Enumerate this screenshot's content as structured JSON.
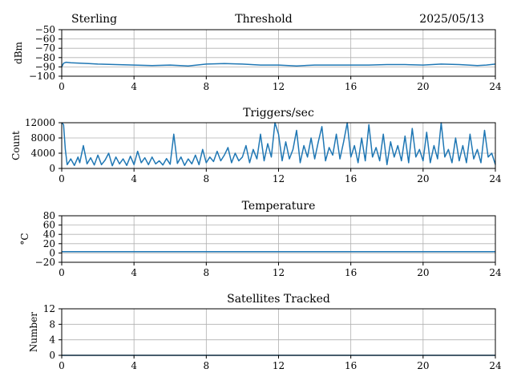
{
  "header": {
    "left": "Sterling",
    "center": "Threshold",
    "right": "2025/05/13"
  },
  "colors": {
    "series": "#1f77b4",
    "grid": "#b0b0b0"
  },
  "chart_data": [
    {
      "type": "line",
      "title": "",
      "ylabel": "dBm",
      "xlabel": "",
      "xlim": [
        0,
        24
      ],
      "ylim": [
        -100,
        -50
      ],
      "xticks": [
        0,
        4,
        8,
        12,
        16,
        20,
        24
      ],
      "yticks": [
        -100,
        -90,
        -80,
        -70,
        -60,
        -50
      ],
      "ytick_labels": [
        "−100",
        "−90",
        "−80",
        "−70",
        "−60",
        "−50"
      ],
      "grid": true,
      "x": [
        0,
        0.1,
        0.25,
        0.5,
        1,
        1.5,
        2,
        3,
        4,
        5,
        6,
        7,
        8,
        9,
        10,
        11,
        12,
        13,
        14,
        15,
        16,
        17,
        18,
        19,
        20,
        21,
        22,
        23,
        23.5,
        24
      ],
      "y": [
        -90,
        -86,
        -85,
        -85.5,
        -86,
        -86.5,
        -87,
        -87.5,
        -88,
        -88.5,
        -88,
        -89,
        -87,
        -86.5,
        -87,
        -88,
        -88,
        -89,
        -88,
        -88,
        -88,
        -88,
        -87.5,
        -87.5,
        -88,
        -87,
        -87.5,
        -88.5,
        -88,
        -87
      ]
    },
    {
      "type": "line",
      "title": "Triggers/sec",
      "ylabel": "Count",
      "xlabel": "",
      "xlim": [
        0,
        24
      ],
      "ylim": [
        0,
        12000
      ],
      "xticks": [
        0,
        4,
        8,
        12,
        16,
        20,
        24
      ],
      "yticks": [
        0,
        4000,
        8000,
        12000
      ],
      "ytick_labels": [
        "0",
        "4000",
        "8000",
        "12000"
      ],
      "grid": true,
      "x": [
        0,
        0.1,
        0.2,
        0.3,
        0.5,
        0.7,
        0.9,
        1.0,
        1.2,
        1.4,
        1.6,
        1.8,
        2.0,
        2.2,
        2.4,
        2.6,
        2.8,
        3.0,
        3.2,
        3.4,
        3.6,
        3.8,
        4.0,
        4.2,
        4.4,
        4.6,
        4.8,
        5.0,
        5.2,
        5.4,
        5.6,
        5.8,
        6.0,
        6.2,
        6.4,
        6.6,
        6.8,
        7.0,
        7.2,
        7.4,
        7.6,
        7.8,
        8.0,
        8.2,
        8.4,
        8.6,
        8.8,
        9.0,
        9.2,
        9.4,
        9.6,
        9.8,
        10.0,
        10.2,
        10.4,
        10.6,
        10.8,
        11.0,
        11.2,
        11.4,
        11.6,
        11.8,
        12.0,
        12.2,
        12.4,
        12.6,
        12.8,
        13.0,
        13.2,
        13.4,
        13.6,
        13.8,
        14.0,
        14.2,
        14.4,
        14.6,
        14.8,
        15.0,
        15.2,
        15.4,
        15.6,
        15.8,
        16.0,
        16.2,
        16.4,
        16.6,
        16.8,
        17.0,
        17.2,
        17.4,
        17.6,
        17.8,
        18.0,
        18.2,
        18.4,
        18.6,
        18.8,
        19.0,
        19.2,
        19.4,
        19.6,
        19.8,
        20.0,
        20.2,
        20.4,
        20.6,
        20.8,
        21.0,
        21.2,
        21.4,
        21.6,
        21.8,
        22.0,
        22.2,
        22.4,
        22.6,
        22.8,
        23.0,
        23.2,
        23.4,
        23.6,
        23.8,
        24.0
      ],
      "y": [
        12000,
        11500,
        5000,
        1000,
        2500,
        800,
        3000,
        1500,
        6000,
        1200,
        2800,
        900,
        3500,
        1000,
        2200,
        4000,
        700,
        3000,
        1200,
        2500,
        800,
        3200,
        1000,
        4500,
        1500,
        2800,
        1000,
        3000,
        1200,
        2000,
        900,
        2600,
        1100,
        9000,
        1300,
        3000,
        800,
        2500,
        1200,
        3500,
        1000,
        5000,
        1500,
        3000,
        1800,
        4500,
        2000,
        3500,
        5500,
        1500,
        4000,
        2000,
        3000,
        6000,
        1500,
        5000,
        2500,
        9000,
        2000,
        6500,
        3000,
        12000,
        9000,
        2000,
        7000,
        2500,
        5000,
        10000,
        1500,
        6000,
        3000,
        8000,
        2500,
        7000,
        11000,
        2000,
        5500,
        3500,
        9000,
        2500,
        7000,
        12000,
        3000,
        6000,
        1500,
        8000,
        2000,
        11500,
        3000,
        5500,
        2000,
        9000,
        1000,
        7000,
        3000,
        6000,
        2000,
        8500,
        1500,
        10500,
        3000,
        5000,
        2000,
        9500,
        1500,
        6000,
        2500,
        12000,
        3000,
        5000,
        1500,
        8000,
        2000,
        6000,
        1500,
        9000,
        2500,
        5000,
        1500,
        10000,
        3000,
        4000,
        1000
      ]
    },
    {
      "type": "line",
      "title": "Temperature",
      "ylabel": "°C",
      "xlabel": "",
      "xlim": [
        0,
        24
      ],
      "ylim": [
        -20,
        80
      ],
      "xticks": [
        0,
        4,
        8,
        12,
        16,
        20,
        24
      ],
      "yticks": [
        -20,
        0,
        20,
        40,
        60,
        80
      ],
      "ytick_labels": [
        "−20",
        "0",
        "20",
        "40",
        "60",
        "80"
      ],
      "grid": true,
      "x": [
        0,
        24
      ],
      "y": [
        3,
        3
      ]
    },
    {
      "type": "line",
      "title": "Satellites Tracked",
      "ylabel": "Number",
      "xlabel": "",
      "xlim": [
        0,
        24
      ],
      "ylim": [
        0,
        12
      ],
      "xticks": [
        0,
        4,
        8,
        12,
        16,
        20,
        24
      ],
      "yticks": [
        0,
        4,
        8,
        12
      ],
      "ytick_labels": [
        "0",
        "4",
        "8",
        "12"
      ],
      "grid": true,
      "x": [
        0,
        24
      ],
      "y": [
        0,
        0
      ]
    }
  ]
}
